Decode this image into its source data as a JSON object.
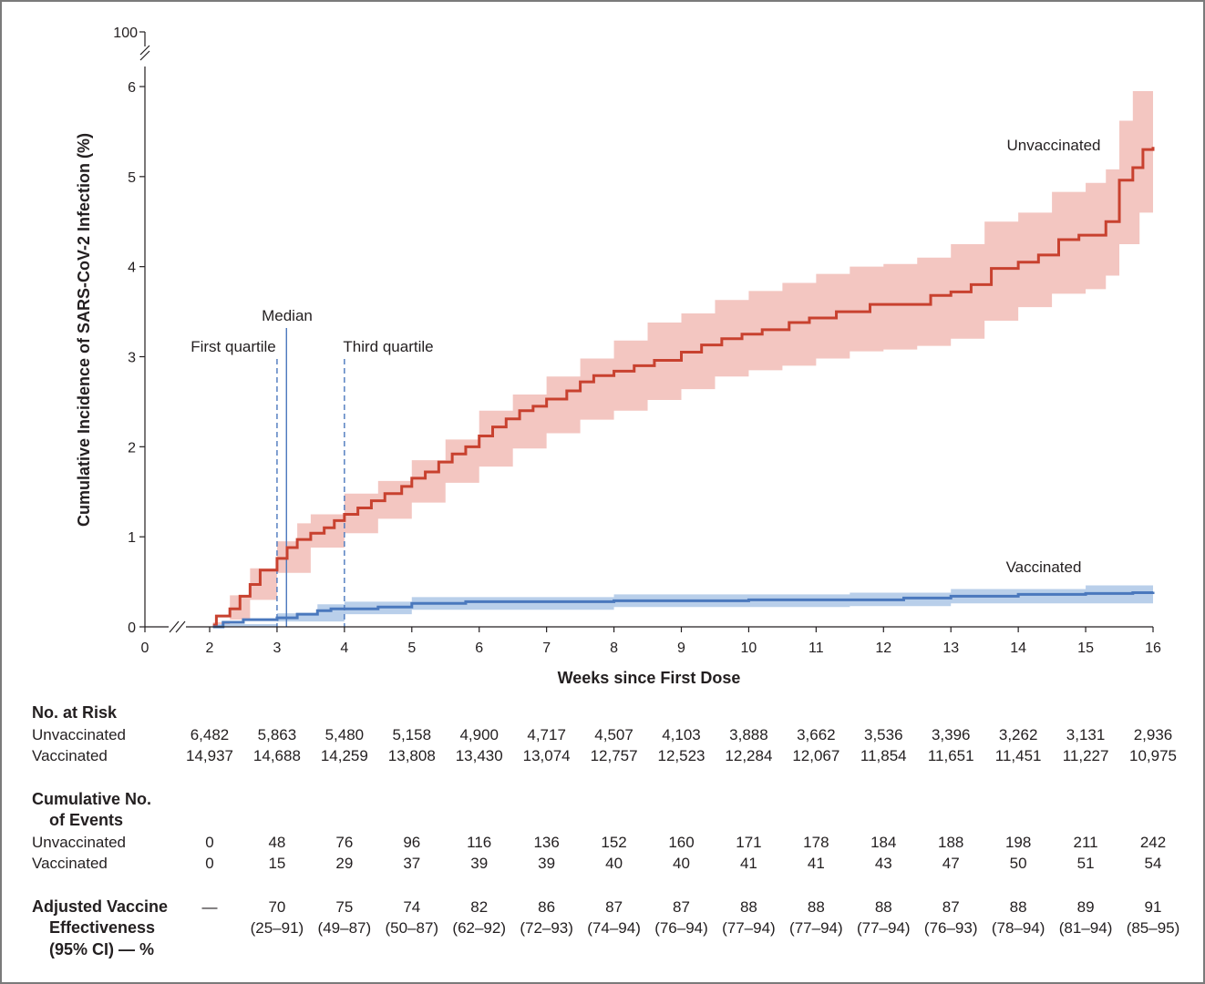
{
  "chart_data": {
    "type": "line",
    "y_axis_label": "Cumulative Incidence of SARS-CoV-2 Infection (%)",
    "x_axis_label": "Weeks since First Dose",
    "x_ticks": [
      0,
      2,
      3,
      4,
      5,
      6,
      7,
      8,
      9,
      10,
      11,
      12,
      13,
      14,
      15,
      16
    ],
    "y_ticks": [
      0,
      1,
      2,
      3,
      4,
      5,
      6
    ],
    "y_break_top": 100,
    "xlim": [
      0,
      16
    ],
    "ylim": [
      0,
      6
    ],
    "axis_breaks": [
      "x between 0 and 2",
      "y between 6 and 100"
    ],
    "colors": {
      "unvaccinated": "#c8412f",
      "unvaccinated_ci": "#f3c6c1",
      "vaccinated": "#4a78bd",
      "vaccinated_ci": "#b9cfea",
      "reference_lines": "#4a78bd"
    },
    "reference_lines": [
      {
        "label": "First quartile",
        "x": 3.0,
        "style": "dashed"
      },
      {
        "label": "Median",
        "x": 3.14,
        "style": "solid"
      },
      {
        "label": "Third quartile",
        "x": 4.0,
        "style": "dashed"
      }
    ],
    "series": [
      {
        "name": "Unvaccinated",
        "points": [
          [
            2.05,
            0.02
          ],
          [
            2.1,
            0.12
          ],
          [
            2.3,
            0.2
          ],
          [
            2.45,
            0.34
          ],
          [
            2.6,
            0.47
          ],
          [
            2.75,
            0.63
          ],
          [
            3.0,
            0.76
          ],
          [
            3.15,
            0.88
          ],
          [
            3.3,
            0.97
          ],
          [
            3.5,
            1.04
          ],
          [
            3.7,
            1.1
          ],
          [
            3.85,
            1.18
          ],
          [
            4.0,
            1.25
          ],
          [
            4.2,
            1.32
          ],
          [
            4.4,
            1.4
          ],
          [
            4.6,
            1.48
          ],
          [
            4.85,
            1.56
          ],
          [
            5.0,
            1.65
          ],
          [
            5.2,
            1.72
          ],
          [
            5.4,
            1.83
          ],
          [
            5.6,
            1.92
          ],
          [
            5.8,
            2.0
          ],
          [
            6.0,
            2.12
          ],
          [
            6.2,
            2.22
          ],
          [
            6.4,
            2.31
          ],
          [
            6.6,
            2.4
          ],
          [
            6.8,
            2.45
          ],
          [
            7.0,
            2.53
          ],
          [
            7.3,
            2.62
          ],
          [
            7.5,
            2.72
          ],
          [
            7.7,
            2.79
          ],
          [
            8.0,
            2.84
          ],
          [
            8.3,
            2.9
          ],
          [
            8.6,
            2.96
          ],
          [
            9.0,
            3.05
          ],
          [
            9.3,
            3.13
          ],
          [
            9.6,
            3.2
          ],
          [
            9.9,
            3.25
          ],
          [
            10.2,
            3.3
          ],
          [
            10.6,
            3.38
          ],
          [
            10.9,
            3.43
          ],
          [
            11.3,
            3.5
          ],
          [
            11.8,
            3.58
          ],
          [
            12.3,
            3.58
          ],
          [
            12.7,
            3.68
          ],
          [
            13.0,
            3.72
          ],
          [
            13.3,
            3.8
          ],
          [
            13.6,
            3.98
          ],
          [
            14.0,
            4.05
          ],
          [
            14.3,
            4.13
          ],
          [
            14.6,
            4.3
          ],
          [
            14.9,
            4.35
          ],
          [
            15.3,
            4.5
          ],
          [
            15.5,
            4.96
          ],
          [
            15.7,
            5.1
          ],
          [
            15.85,
            5.3
          ],
          [
            16.0,
            5.33
          ]
        ],
        "ci_lower": [
          [
            2.05,
            0.0
          ],
          [
            2.3,
            0.08
          ],
          [
            2.6,
            0.3
          ],
          [
            3.0,
            0.6
          ],
          [
            3.5,
            0.88
          ],
          [
            4.0,
            1.04
          ],
          [
            4.5,
            1.2
          ],
          [
            5.0,
            1.38
          ],
          [
            5.5,
            1.6
          ],
          [
            6.0,
            1.78
          ],
          [
            6.5,
            1.98
          ],
          [
            7.0,
            2.15
          ],
          [
            7.5,
            2.3
          ],
          [
            8.0,
            2.4
          ],
          [
            8.5,
            2.52
          ],
          [
            9.0,
            2.64
          ],
          [
            9.5,
            2.78
          ],
          [
            10.0,
            2.85
          ],
          [
            10.5,
            2.9
          ],
          [
            11.0,
            2.98
          ],
          [
            11.5,
            3.06
          ],
          [
            12.0,
            3.08
          ],
          [
            12.5,
            3.12
          ],
          [
            13.0,
            3.2
          ],
          [
            13.5,
            3.4
          ],
          [
            14.0,
            3.55
          ],
          [
            14.5,
            3.7
          ],
          [
            15.0,
            3.75
          ],
          [
            15.3,
            3.9
          ],
          [
            15.5,
            4.25
          ],
          [
            15.8,
            4.6
          ],
          [
            16.0,
            4.6
          ]
        ],
        "ci_upper": [
          [
            2.05,
            0.05
          ],
          [
            2.3,
            0.35
          ],
          [
            2.6,
            0.65
          ],
          [
            3.0,
            0.95
          ],
          [
            3.3,
            1.15
          ],
          [
            3.5,
            1.25
          ],
          [
            4.0,
            1.48
          ],
          [
            4.5,
            1.62
          ],
          [
            5.0,
            1.85
          ],
          [
            5.5,
            2.08
          ],
          [
            6.0,
            2.4
          ],
          [
            6.5,
            2.58
          ],
          [
            7.0,
            2.78
          ],
          [
            7.5,
            2.98
          ],
          [
            8.0,
            3.18
          ],
          [
            8.5,
            3.38
          ],
          [
            9.0,
            3.48
          ],
          [
            9.5,
            3.63
          ],
          [
            10.0,
            3.73
          ],
          [
            10.5,
            3.82
          ],
          [
            11.0,
            3.92
          ],
          [
            11.5,
            4.0
          ],
          [
            12.0,
            4.03
          ],
          [
            12.5,
            4.1
          ],
          [
            13.0,
            4.25
          ],
          [
            13.5,
            4.5
          ],
          [
            14.0,
            4.6
          ],
          [
            14.5,
            4.83
          ],
          [
            15.0,
            4.93
          ],
          [
            15.3,
            5.08
          ],
          [
            15.5,
            5.62
          ],
          [
            15.7,
            5.95
          ],
          [
            16.0,
            5.95
          ]
        ]
      },
      {
        "name": "Vaccinated",
        "points": [
          [
            2.05,
            0.0
          ],
          [
            2.2,
            0.05
          ],
          [
            2.5,
            0.08
          ],
          [
            3.0,
            0.1
          ],
          [
            3.3,
            0.14
          ],
          [
            3.6,
            0.18
          ],
          [
            3.8,
            0.2
          ],
          [
            4.5,
            0.22
          ],
          [
            5.0,
            0.26
          ],
          [
            5.8,
            0.28
          ],
          [
            8.0,
            0.29
          ],
          [
            10.0,
            0.3
          ],
          [
            11.6,
            0.3
          ],
          [
            12.3,
            0.32
          ],
          [
            13.0,
            0.34
          ],
          [
            14.0,
            0.36
          ],
          [
            15.0,
            0.37
          ],
          [
            15.7,
            0.38
          ],
          [
            16.0,
            0.39
          ]
        ],
        "ci_lower": [
          [
            2.05,
            0.0
          ],
          [
            3.0,
            0.06
          ],
          [
            4.0,
            0.14
          ],
          [
            5.0,
            0.19
          ],
          [
            8.0,
            0.22
          ],
          [
            11.5,
            0.23
          ],
          [
            13.0,
            0.26
          ],
          [
            16.0,
            0.3
          ]
        ],
        "ci_upper": [
          [
            2.05,
            0.03
          ],
          [
            3.0,
            0.15
          ],
          [
            3.6,
            0.25
          ],
          [
            4.0,
            0.28
          ],
          [
            5.0,
            0.33
          ],
          [
            8.0,
            0.36
          ],
          [
            11.5,
            0.38
          ],
          [
            13.0,
            0.42
          ],
          [
            15.0,
            0.46
          ],
          [
            16.0,
            0.49
          ]
        ]
      }
    ]
  },
  "table": {
    "weeks": [
      2,
      3,
      4,
      5,
      6,
      7,
      8,
      9,
      10,
      11,
      12,
      13,
      14,
      15,
      16
    ],
    "at_risk": {
      "title": "No. at Risk",
      "rows": [
        {
          "label": "Unvaccinated",
          "values": [
            "6,482",
            "5,863",
            "5,480",
            "5,158",
            "4,900",
            "4,717",
            "4,507",
            "4,103",
            "3,888",
            "3,662",
            "3,536",
            "3,396",
            "3,262",
            "3,131",
            "2,936"
          ]
        },
        {
          "label": "Vaccinated",
          "values": [
            "14,937",
            "14,688",
            "14,259",
            "13,808",
            "13,430",
            "13,074",
            "12,757",
            "12,523",
            "12,284",
            "12,067",
            "11,854",
            "11,651",
            "11,451",
            "11,227",
            "10,975"
          ]
        }
      ]
    },
    "events": {
      "title_lines": [
        "Cumulative No.",
        "of Events"
      ],
      "rows": [
        {
          "label": "Unvaccinated",
          "values": [
            "0",
            "48",
            "76",
            "96",
            "116",
            "136",
            "152",
            "160",
            "171",
            "178",
            "184",
            "188",
            "198",
            "211",
            "242"
          ]
        },
        {
          "label": "Vaccinated",
          "values": [
            "0",
            "15",
            "29",
            "37",
            "39",
            "39",
            "40",
            "40",
            "41",
            "41",
            "43",
            "47",
            "50",
            "51",
            "54"
          ]
        }
      ]
    },
    "effectiveness": {
      "title_lines": [
        "Adjusted Vaccine",
        "Effectiveness",
        "(95% CI) — %"
      ],
      "values": [
        "—",
        "70",
        "75",
        "74",
        "82",
        "86",
        "87",
        "87",
        "88",
        "88",
        "88",
        "87",
        "88",
        "89",
        "91"
      ],
      "ci": [
        "",
        "(25–91)",
        "(49–87)",
        "(50–87)",
        "(62–92)",
        "(72–93)",
        "(74–94)",
        "(76–94)",
        "(77–94)",
        "(77–94)",
        "(77–94)",
        "(76–93)",
        "(78–94)",
        "(81–94)",
        "(85–95)"
      ]
    }
  }
}
